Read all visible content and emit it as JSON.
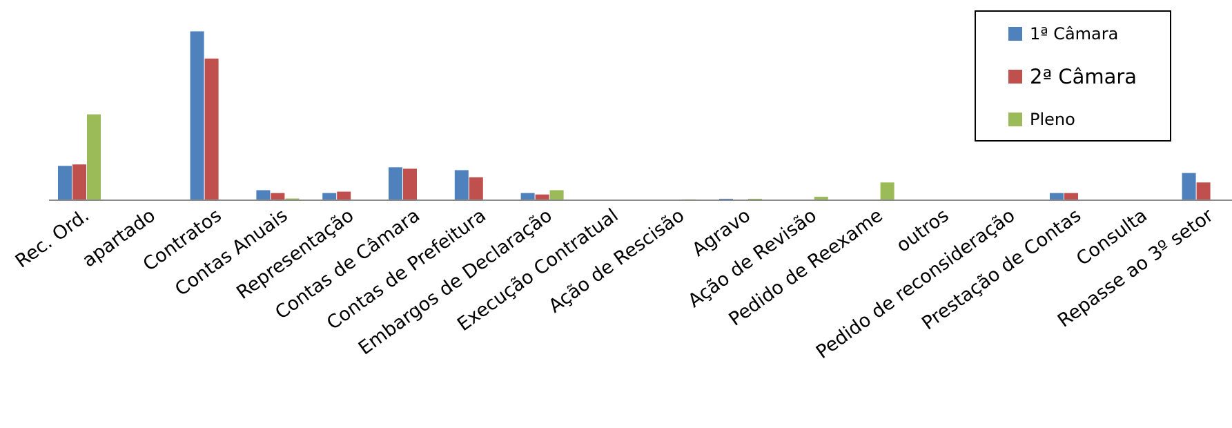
{
  "chart_data": {
    "type": "bar",
    "categories": [
      "Rec. Ord.",
      "apartado",
      "Contratos",
      "Contas Anuais",
      "Representação",
      "Contas de Câmara",
      "Contas de Prefeitura",
      "Embargos de Declaração",
      "Execução Contratual",
      "Ação de Rescisão",
      "Agravo",
      "Ação de Revisão",
      "Pedido de Reexame",
      "outros",
      "Pedido de reconsideração",
      "Prestação de Contas",
      "Consulta",
      "Repasse ao 3º setor"
    ],
    "series": [
      {
        "name": "1ª Câmara",
        "color": "#4F81BD",
        "values": [
          12,
          0,
          59,
          3.5,
          2.5,
          11.5,
          10.5,
          2.5,
          0,
          0,
          0.5,
          0,
          0,
          0,
          0,
          2.5,
          0,
          9.5
        ]
      },
      {
        "name": "2ª Câmara",
        "color": "#C0504D",
        "values": [
          12.5,
          0,
          49.5,
          2.5,
          3,
          11,
          8,
          2,
          0,
          0,
          0,
          0,
          0,
          0,
          0,
          2.5,
          0,
          6.2
        ]
      },
      {
        "name": "Pleno",
        "color": "#9BBB59",
        "values": [
          30,
          0,
          0,
          0.6,
          0,
          0,
          0,
          3.5,
          0,
          0.3,
          0.5,
          1.2,
          6.2,
          0,
          0,
          0,
          0,
          0
        ]
      }
    ],
    "ylim": [
      0,
      62
    ],
    "title": "",
    "xlabel": "",
    "ylabel": "",
    "grid": false,
    "legend": "top-right"
  }
}
